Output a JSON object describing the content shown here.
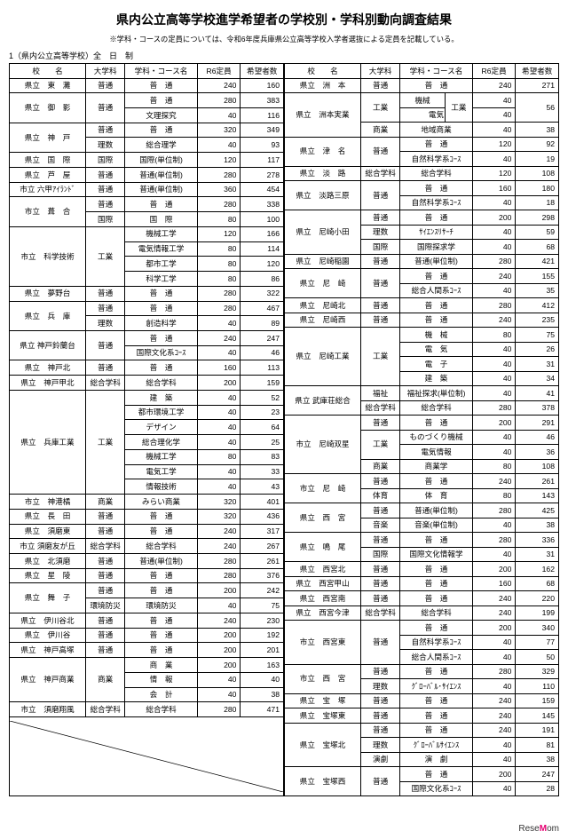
{
  "title": "県内公立高等学校進学希望者の学校別・学科別動向調査結果",
  "note": "※学科・コースの定員については、令和6年度兵庫県公立高等学校入学者選抜による定員を記載している。",
  "subhead": "1（県内公立高等学校）全　日　制",
  "headers": [
    "校　　名",
    "大学科",
    "学科・コース名",
    "R6定員",
    "希望者数"
  ],
  "left": [
    {
      "school": "県立　東　灘",
      "dai": "普通",
      "ka": "普　通",
      "cap": "240",
      "app": "160"
    },
    {
      "school": "県立　御　影",
      "rowspan": 2,
      "dai": "普通",
      "dairow": 2,
      "ka": "普　通",
      "cap": "280",
      "app": "383"
    },
    {
      "ka": "文理探究",
      "cap": "40",
      "app": "116",
      "dash": true
    },
    {
      "school": "県立　神　戸",
      "rowspan": 2,
      "dai": "普通",
      "ka": "普　通",
      "cap": "320",
      "app": "349"
    },
    {
      "dai": "理数",
      "ka": "総合理学",
      "cap": "40",
      "app": "93"
    },
    {
      "school": "県立　国　際",
      "dai": "国際",
      "ka": "国際(単位制)",
      "cap": "120",
      "app": "117"
    },
    {
      "school": "県立　芦　屋",
      "dai": "普通",
      "ka": "普通(単位制)",
      "cap": "280",
      "app": "278"
    },
    {
      "school": "市立 六甲ｱｲﾗﾝﾄﾞ",
      "dai": "普通",
      "ka": "普通(単位制)",
      "cap": "360",
      "app": "454"
    },
    {
      "school": "市立　葺　合",
      "rowspan": 2,
      "dai": "普通",
      "ka": "普　通",
      "cap": "280",
      "app": "338"
    },
    {
      "dai": "国際",
      "ka": "国　際",
      "cap": "80",
      "app": "100"
    },
    {
      "school": "市立　科学技術",
      "rowspan": 4,
      "dai": "工業",
      "dairow": 4,
      "ka": "機械工学",
      "cap": "120",
      "app": "166"
    },
    {
      "ka": "電気情報工学",
      "cap": "80",
      "app": "114",
      "dash": true
    },
    {
      "ka": "都市工学",
      "cap": "80",
      "app": "120",
      "dash": true
    },
    {
      "ka": "科学工学",
      "cap": "80",
      "app": "86",
      "dash": true
    },
    {
      "school": "県立　夢野台",
      "dai": "普通",
      "ka": "普　通",
      "cap": "280",
      "app": "322"
    },
    {
      "school": "県立　兵　庫",
      "rowspan": 2,
      "dai": "普通",
      "ka": "普　通",
      "cap": "280",
      "app": "467"
    },
    {
      "dai": "理数",
      "ka": "創造科学",
      "cap": "40",
      "app": "89"
    },
    {
      "school": "県立 神戸鈴蘭台",
      "rowspan": 2,
      "dai": "普通",
      "dairow": 2,
      "ka": "普　通",
      "cap": "240",
      "app": "247"
    },
    {
      "ka": "国際文化系ｺｰｽ",
      "cap": "40",
      "app": "46",
      "dash": true
    },
    {
      "school": "県立　神戸北",
      "dai": "普通",
      "ka": "普　通",
      "cap": "160",
      "app": "113"
    },
    {
      "school": "県立　神戸甲北",
      "dai": "総合学科",
      "ka": "総合学科",
      "cap": "200",
      "app": "159"
    },
    {
      "school": "県立　兵庫工業",
      "rowspan": 7,
      "dai": "工業",
      "dairow": 7,
      "ka": "建　築",
      "cap": "40",
      "app": "52"
    },
    {
      "ka": "都市環境工学",
      "cap": "40",
      "app": "23",
      "dash": true
    },
    {
      "ka": "デザイン",
      "cap": "40",
      "app": "64",
      "dash": true
    },
    {
      "ka": "総合理化学",
      "cap": "40",
      "app": "25",
      "dash": true
    },
    {
      "ka": "機械工学",
      "cap": "80",
      "app": "83",
      "dash": true
    },
    {
      "ka": "電気工学",
      "cap": "40",
      "app": "33",
      "dash": true
    },
    {
      "ka": "情報技術",
      "cap": "40",
      "app": "43",
      "dash": true
    },
    {
      "school": "市立　神港橘",
      "dai": "商業",
      "ka": "みらい商業",
      "cap": "320",
      "app": "401"
    },
    {
      "school": "県立　長　田",
      "dai": "普通",
      "ka": "普　通",
      "cap": "320",
      "app": "436"
    },
    {
      "school": "県立　須磨東",
      "dai": "普通",
      "ka": "普　通",
      "cap": "240",
      "app": "317"
    },
    {
      "school": "市立 須磨友が丘",
      "dai": "総合学科",
      "ka": "総合学科",
      "cap": "240",
      "app": "267"
    },
    {
      "school": "県立　北須磨",
      "dai": "普通",
      "ka": "普通(単位制)",
      "cap": "280",
      "app": "261"
    },
    {
      "school": "県立　星　陵",
      "dai": "普通",
      "ka": "普　通",
      "cap": "280",
      "app": "376"
    },
    {
      "school": "県立　舞　子",
      "rowspan": 2,
      "dai": "普通",
      "ka": "普　通",
      "cap": "200",
      "app": "242"
    },
    {
      "dai": "環境防災",
      "ka": "環境防災",
      "cap": "40",
      "app": "75"
    },
    {
      "school": "県立　伊川谷北",
      "dai": "普通",
      "ka": "普　通",
      "cap": "240",
      "app": "230"
    },
    {
      "school": "県立　伊川谷",
      "dai": "普通",
      "ka": "普　通",
      "cap": "200",
      "app": "192"
    },
    {
      "school": "県立　神戸高塚",
      "dai": "普通",
      "ka": "普　通",
      "cap": "200",
      "app": "201"
    },
    {
      "school": "県立　神戸商業",
      "rowspan": 3,
      "dai": "商業",
      "dairow": 3,
      "ka": "商　業",
      "cap": "200",
      "app": "163"
    },
    {
      "ka": "情　報",
      "cap": "40",
      "app": "40",
      "dash": true
    },
    {
      "ka": "会　計",
      "cap": "40",
      "app": "38",
      "dash": true
    },
    {
      "school": "市立　須磨翔風",
      "dai": "総合学科",
      "ka": "総合学科",
      "cap": "280",
      "app": "471"
    }
  ],
  "right": [
    {
      "school": "県立　洲　本",
      "dai": "普通",
      "ka": "普　通",
      "cap": "240",
      "app": "271"
    },
    {
      "school": "県立　洲本実業",
      "rowspan": 3,
      "dai": "工業",
      "dairow": 2,
      "ka": "機械",
      "ka2": "工業",
      "ka2row": 2,
      "cap": "40",
      "app": "56",
      "apprs": 2
    },
    {
      "ka": "電気",
      "cap": "40",
      "dash": true
    },
    {
      "dai": "商業",
      "ka": "地域商業",
      "cap": "40",
      "app": "38"
    },
    {
      "school": "県立　津　名",
      "rowspan": 2,
      "dai": "普通",
      "dairow": 2,
      "ka": "普　通",
      "cap": "120",
      "app": "92"
    },
    {
      "ka": "自然科学系ｺｰｽ",
      "cap": "40",
      "app": "19",
      "dash": true
    },
    {
      "school": "県立　淡　路",
      "dai": "総合学科",
      "ka": "総合学科",
      "cap": "120",
      "app": "108"
    },
    {
      "school": "県立　淡路三原",
      "rowspan": 2,
      "dai": "普通",
      "dairow": 2,
      "ka": "普　通",
      "cap": "160",
      "app": "180"
    },
    {
      "ka": "自然科学系ｺｰｽ",
      "cap": "40",
      "app": "18",
      "dash": true
    },
    {
      "school": "県立　尼崎小田",
      "rowspan": 3,
      "dai": "普通",
      "ka": "普　通",
      "cap": "200",
      "app": "298"
    },
    {
      "dai": "理数",
      "ka": "ｻｲｴﾝｽﾘｻｰﾁ",
      "cap": "40",
      "app": "59"
    },
    {
      "dai": "国際",
      "ka": "国際探求学",
      "cap": "40",
      "app": "68"
    },
    {
      "school": "県立　尼崎稲園",
      "dai": "普通",
      "ka": "普通(単位制)",
      "cap": "280",
      "app": "421"
    },
    {
      "school": "県立　尼　崎",
      "rowspan": 2,
      "dai": "普通",
      "dairow": 2,
      "ka": "普　通",
      "cap": "240",
      "app": "155"
    },
    {
      "ka": "総合人間系ｺｰｽ",
      "cap": "40",
      "app": "35",
      "dash": true
    },
    {
      "school": "県立　尼崎北",
      "dai": "普通",
      "ka": "普　通",
      "cap": "280",
      "app": "412"
    },
    {
      "school": "県立　尼崎西",
      "dai": "普通",
      "ka": "普　通",
      "cap": "240",
      "app": "235"
    },
    {
      "school": "県立　尼崎工業",
      "rowspan": 4,
      "dai": "工業",
      "dairow": 4,
      "ka": "機　械",
      "cap": "80",
      "app": "75"
    },
    {
      "ka": "電　気",
      "cap": "40",
      "app": "26",
      "dash": true
    },
    {
      "ka": "電　子",
      "cap": "40",
      "app": "31",
      "dash": true
    },
    {
      "ka": "建　築",
      "cap": "40",
      "app": "34",
      "dash": true
    },
    {
      "school": "県立 武庫荘総合",
      "rowspan": 2,
      "dai": "福祉",
      "ka": "福祉探求(単位制)",
      "cap": "40",
      "app": "41"
    },
    {
      "dai": "総合学科",
      "ka": "総合学科",
      "cap": "280",
      "app": "378"
    },
    {
      "school": "市立　尼崎双星",
      "rowspan": 4,
      "dai": "普通",
      "ka": "普　通",
      "cap": "200",
      "app": "291"
    },
    {
      "dai": "工業",
      "dairow": 2,
      "ka": "ものづくり機械",
      "cap": "40",
      "app": "46"
    },
    {
      "ka": "電気情報",
      "cap": "40",
      "app": "36",
      "dash": true
    },
    {
      "dai": "商業",
      "ka": "商業学",
      "cap": "80",
      "app": "108"
    },
    {
      "school": "市立　尼　崎",
      "rowspan": 2,
      "dai": "普通",
      "ka": "普　通",
      "cap": "240",
      "app": "261"
    },
    {
      "dai": "体育",
      "ka": "体　育",
      "cap": "80",
      "app": "143"
    },
    {
      "school": "県立　西　宮",
      "rowspan": 2,
      "dai": "普通",
      "ka": "普通(単位制)",
      "cap": "280",
      "app": "425"
    },
    {
      "dai": "音楽",
      "ka": "音楽(単位制)",
      "cap": "40",
      "app": "38"
    },
    {
      "school": "県立　鳴　尾",
      "rowspan": 2,
      "dai": "普通",
      "ka": "普　通",
      "cap": "280",
      "app": "336"
    },
    {
      "dai": "国際",
      "ka": "国際文化情報学",
      "cap": "40",
      "app": "31"
    },
    {
      "school": "県立　西宮北",
      "dai": "普通",
      "ka": "普　通",
      "cap": "200",
      "app": "162"
    },
    {
      "school": "県立　西宮甲山",
      "dai": "普通",
      "ka": "普　通",
      "cap": "160",
      "app": "68"
    },
    {
      "school": "県立　西宮南",
      "dai": "普通",
      "ka": "普　通",
      "cap": "240",
      "app": "220"
    },
    {
      "school": "県立　西宮今津",
      "dai": "総合学科",
      "ka": "総合学科",
      "cap": "240",
      "app": "199"
    },
    {
      "school": "市立　西宮東",
      "rowspan": 3,
      "dai": "普通",
      "dairow": 3,
      "ka": "普　通",
      "cap": "200",
      "app": "340"
    },
    {
      "ka": "自然科学系ｺｰｽ",
      "cap": "40",
      "app": "77",
      "dash": true
    },
    {
      "ka": "総合人間系ｺｰｽ",
      "cap": "40",
      "app": "50",
      "dash": true
    },
    {
      "school": "市立　西　宮",
      "rowspan": 2,
      "dai": "普通",
      "ka": "普　通",
      "cap": "280",
      "app": "329"
    },
    {
      "dai": "理数",
      "ka": "ｸﾞﾛｰﾊﾞﾙ･ｻｲｴﾝｽ",
      "cap": "40",
      "app": "110"
    },
    {
      "school": "県立　宝　塚",
      "dai": "普通",
      "ka": "普　通",
      "cap": "240",
      "app": "159"
    },
    {
      "school": "県立　宝塚東",
      "dai": "普通",
      "ka": "普　通",
      "cap": "240",
      "app": "145"
    },
    {
      "school": "県立　宝塚北",
      "rowspan": 3,
      "dai": "普通",
      "ka": "普　通",
      "cap": "240",
      "app": "191"
    },
    {
      "dai": "理数",
      "ka": "ｸﾞﾛｰﾊﾞﾙｻｲｴﾝｽ",
      "cap": "40",
      "app": "81"
    },
    {
      "dai": "演劇",
      "ka": "演　劇",
      "cap": "40",
      "app": "38"
    },
    {
      "school": "県立　宝塚西",
      "rowspan": 2,
      "dai": "普通",
      "dairow": 2,
      "ka": "普　通",
      "cap": "200",
      "app": "247"
    },
    {
      "ka": "国際文化系ｺｰｽ",
      "cap": "40",
      "app": "28",
      "dash": true
    }
  ],
  "colwidths": {
    "school": 78,
    "dai": 40,
    "ka": 74,
    "cap": 44,
    "app": 44,
    "ka2": 28
  },
  "footer_brand": "ReseMom"
}
